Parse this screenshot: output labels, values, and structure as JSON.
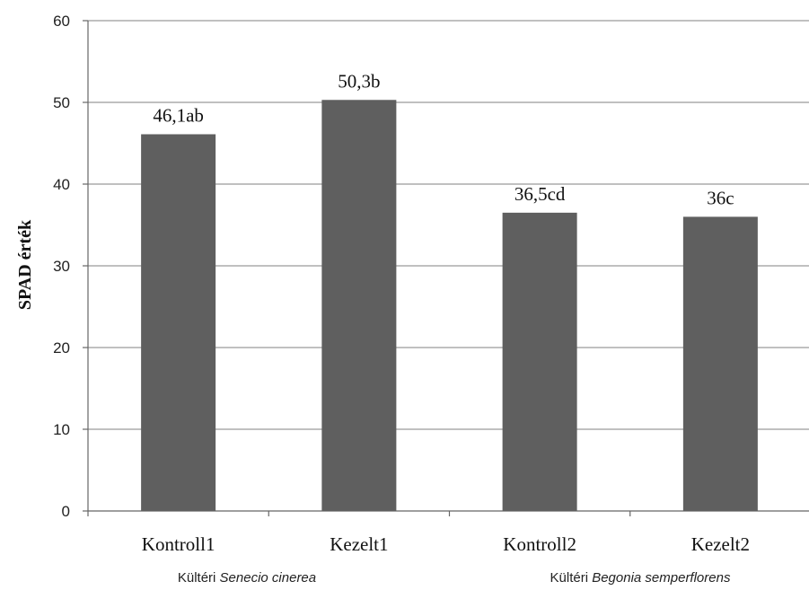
{
  "chart_data": {
    "type": "bar",
    "categories": [
      "Kontroll1",
      "Kezelt1",
      "Kontroll2",
      "Kezelt2"
    ],
    "values": [
      46.1,
      50.3,
      36.5,
      36
    ],
    "data_labels": [
      "46,1ab",
      "50,3b",
      "36,5cd",
      "36c"
    ],
    "ylabel": "SPAD érték",
    "xlabel": "",
    "ylim": [
      0,
      60
    ],
    "yticks": [
      0,
      10,
      20,
      30,
      40,
      50,
      60
    ],
    "grid": true,
    "bar_color": "#5f5f5f",
    "groups": [
      {
        "prefix": "Kültéri ",
        "species": "Senecio cinerea",
        "categories": [
          "Kontroll1",
          "Kezelt1"
        ]
      },
      {
        "prefix": "Kültéri ",
        "species": "Begonia semperflorens",
        "categories": [
          "Kontroll2",
          "Kezelt2"
        ]
      }
    ]
  }
}
